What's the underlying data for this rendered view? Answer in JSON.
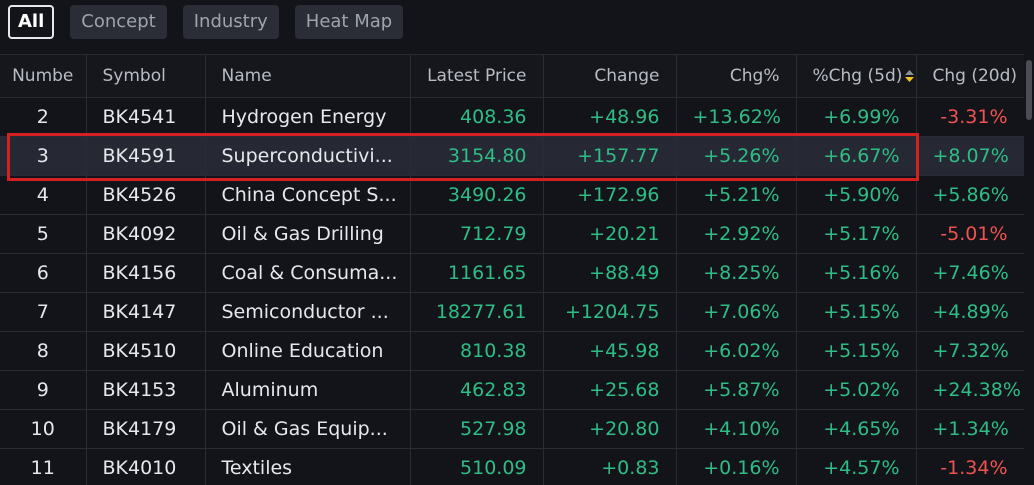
{
  "tabs": [
    "All",
    "Concept",
    "Industry",
    "Heat Map"
  ],
  "table": {
    "columns": [
      "Numbe",
      "Symbol",
      "Name",
      "Latest Price",
      "Change",
      "Chg%",
      "%Chg (5d)",
      "Chg (20d)"
    ],
    "rows": [
      [
        "2",
        "BK4541",
        "Hydrogen Energy",
        "408.36",
        "+48.96",
        "+13.62%",
        "+6.99%",
        "-3.31%"
      ],
      [
        "3",
        "BK4591",
        "Superconductivi...",
        "3154.80",
        "+157.77",
        "+5.26%",
        "+6.67%",
        "+8.07%"
      ],
      [
        "4",
        "BK4526",
        "China Concept S...",
        "3490.26",
        "+172.96",
        "+5.21%",
        "+5.90%",
        "+5.86%"
      ],
      [
        "5",
        "BK4092",
        "Oil & Gas Drilling",
        "712.79",
        "+20.21",
        "+2.92%",
        "+5.17%",
        "-5.01%"
      ],
      [
        "6",
        "BK4156",
        "Coal & Consuma...",
        "1161.65",
        "+88.49",
        "+8.25%",
        "+5.16%",
        "+7.46%"
      ],
      [
        "7",
        "BK4147",
        "Semiconductor ...",
        "18277.61",
        "+1204.75",
        "+7.06%",
        "+5.15%",
        "+4.89%"
      ],
      [
        "8",
        "BK4510",
        "Online Education",
        "810.38",
        "+45.98",
        "+6.02%",
        "+5.15%",
        "+7.32%"
      ],
      [
        "9",
        "BK4153",
        "Aluminum",
        "462.83",
        "+25.68",
        "+5.87%",
        "+5.02%",
        "+24.38%"
      ],
      [
        "10",
        "BK4179",
        "Oil & Gas Equip...",
        "527.98",
        "+20.80",
        "+4.10%",
        "+4.65%",
        "+1.34%"
      ],
      [
        "11",
        "BK4010",
        "Textiles",
        "510.09",
        "+0.83",
        "+0.16%",
        "+4.57%",
        "-1.34%"
      ]
    ]
  }
}
